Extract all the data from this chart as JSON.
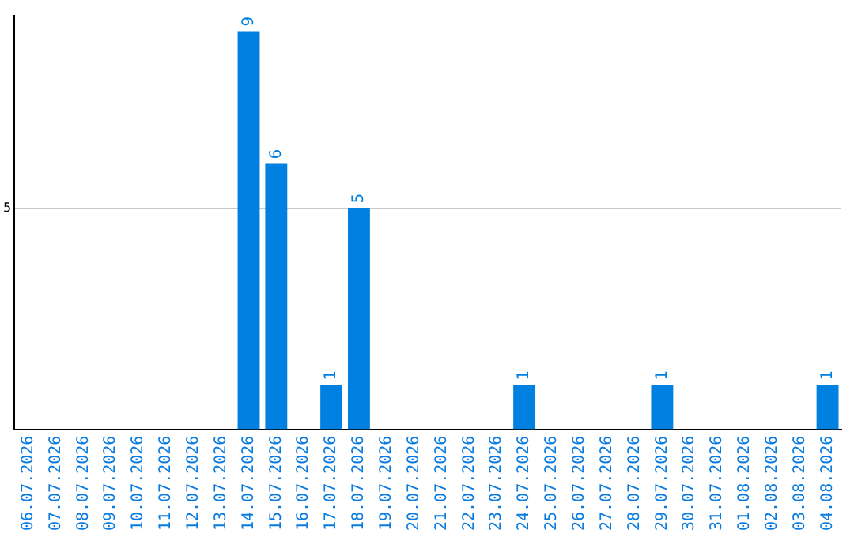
{
  "chart_data": {
    "type": "bar",
    "categories": [
      "06.07.2026",
      "07.07.2026",
      "08.07.2026",
      "09.07.2026",
      "10.07.2026",
      "11.07.2026",
      "12.07.2026",
      "13.07.2026",
      "14.07.2026",
      "15.07.2026",
      "16.07.2026",
      "17.07.2026",
      "18.07.2026",
      "19.07.2026",
      "20.07.2026",
      "21.07.2026",
      "22.07.2026",
      "23.07.2026",
      "24.07.2026",
      "25.07.2026",
      "26.07.2026",
      "27.07.2026",
      "28.07.2026",
      "29.07.2026",
      "30.07.2026",
      "31.07.2026",
      "01.08.2026",
      "02.08.2026",
      "03.08.2026",
      "04.08.2026"
    ],
    "values": [
      0,
      0,
      0,
      0,
      0,
      0,
      0,
      0,
      9,
      6,
      0,
      1,
      5,
      0,
      0,
      0,
      0,
      0,
      1,
      0,
      0,
      0,
      0,
      1,
      0,
      0,
      0,
      0,
      0,
      1
    ],
    "value_labels": [
      null,
      null,
      null,
      null,
      null,
      null,
      null,
      null,
      "9",
      "6",
      null,
      "1",
      "5",
      null,
      null,
      null,
      null,
      null,
      "1",
      null,
      null,
      null,
      null,
      "1",
      null,
      null,
      null,
      null,
      null,
      "1"
    ],
    "color": "#0080e0",
    "ylim": [
      0,
      9.35
    ],
    "yticks": [
      5
    ],
    "grid": "y",
    "legend": false
  }
}
